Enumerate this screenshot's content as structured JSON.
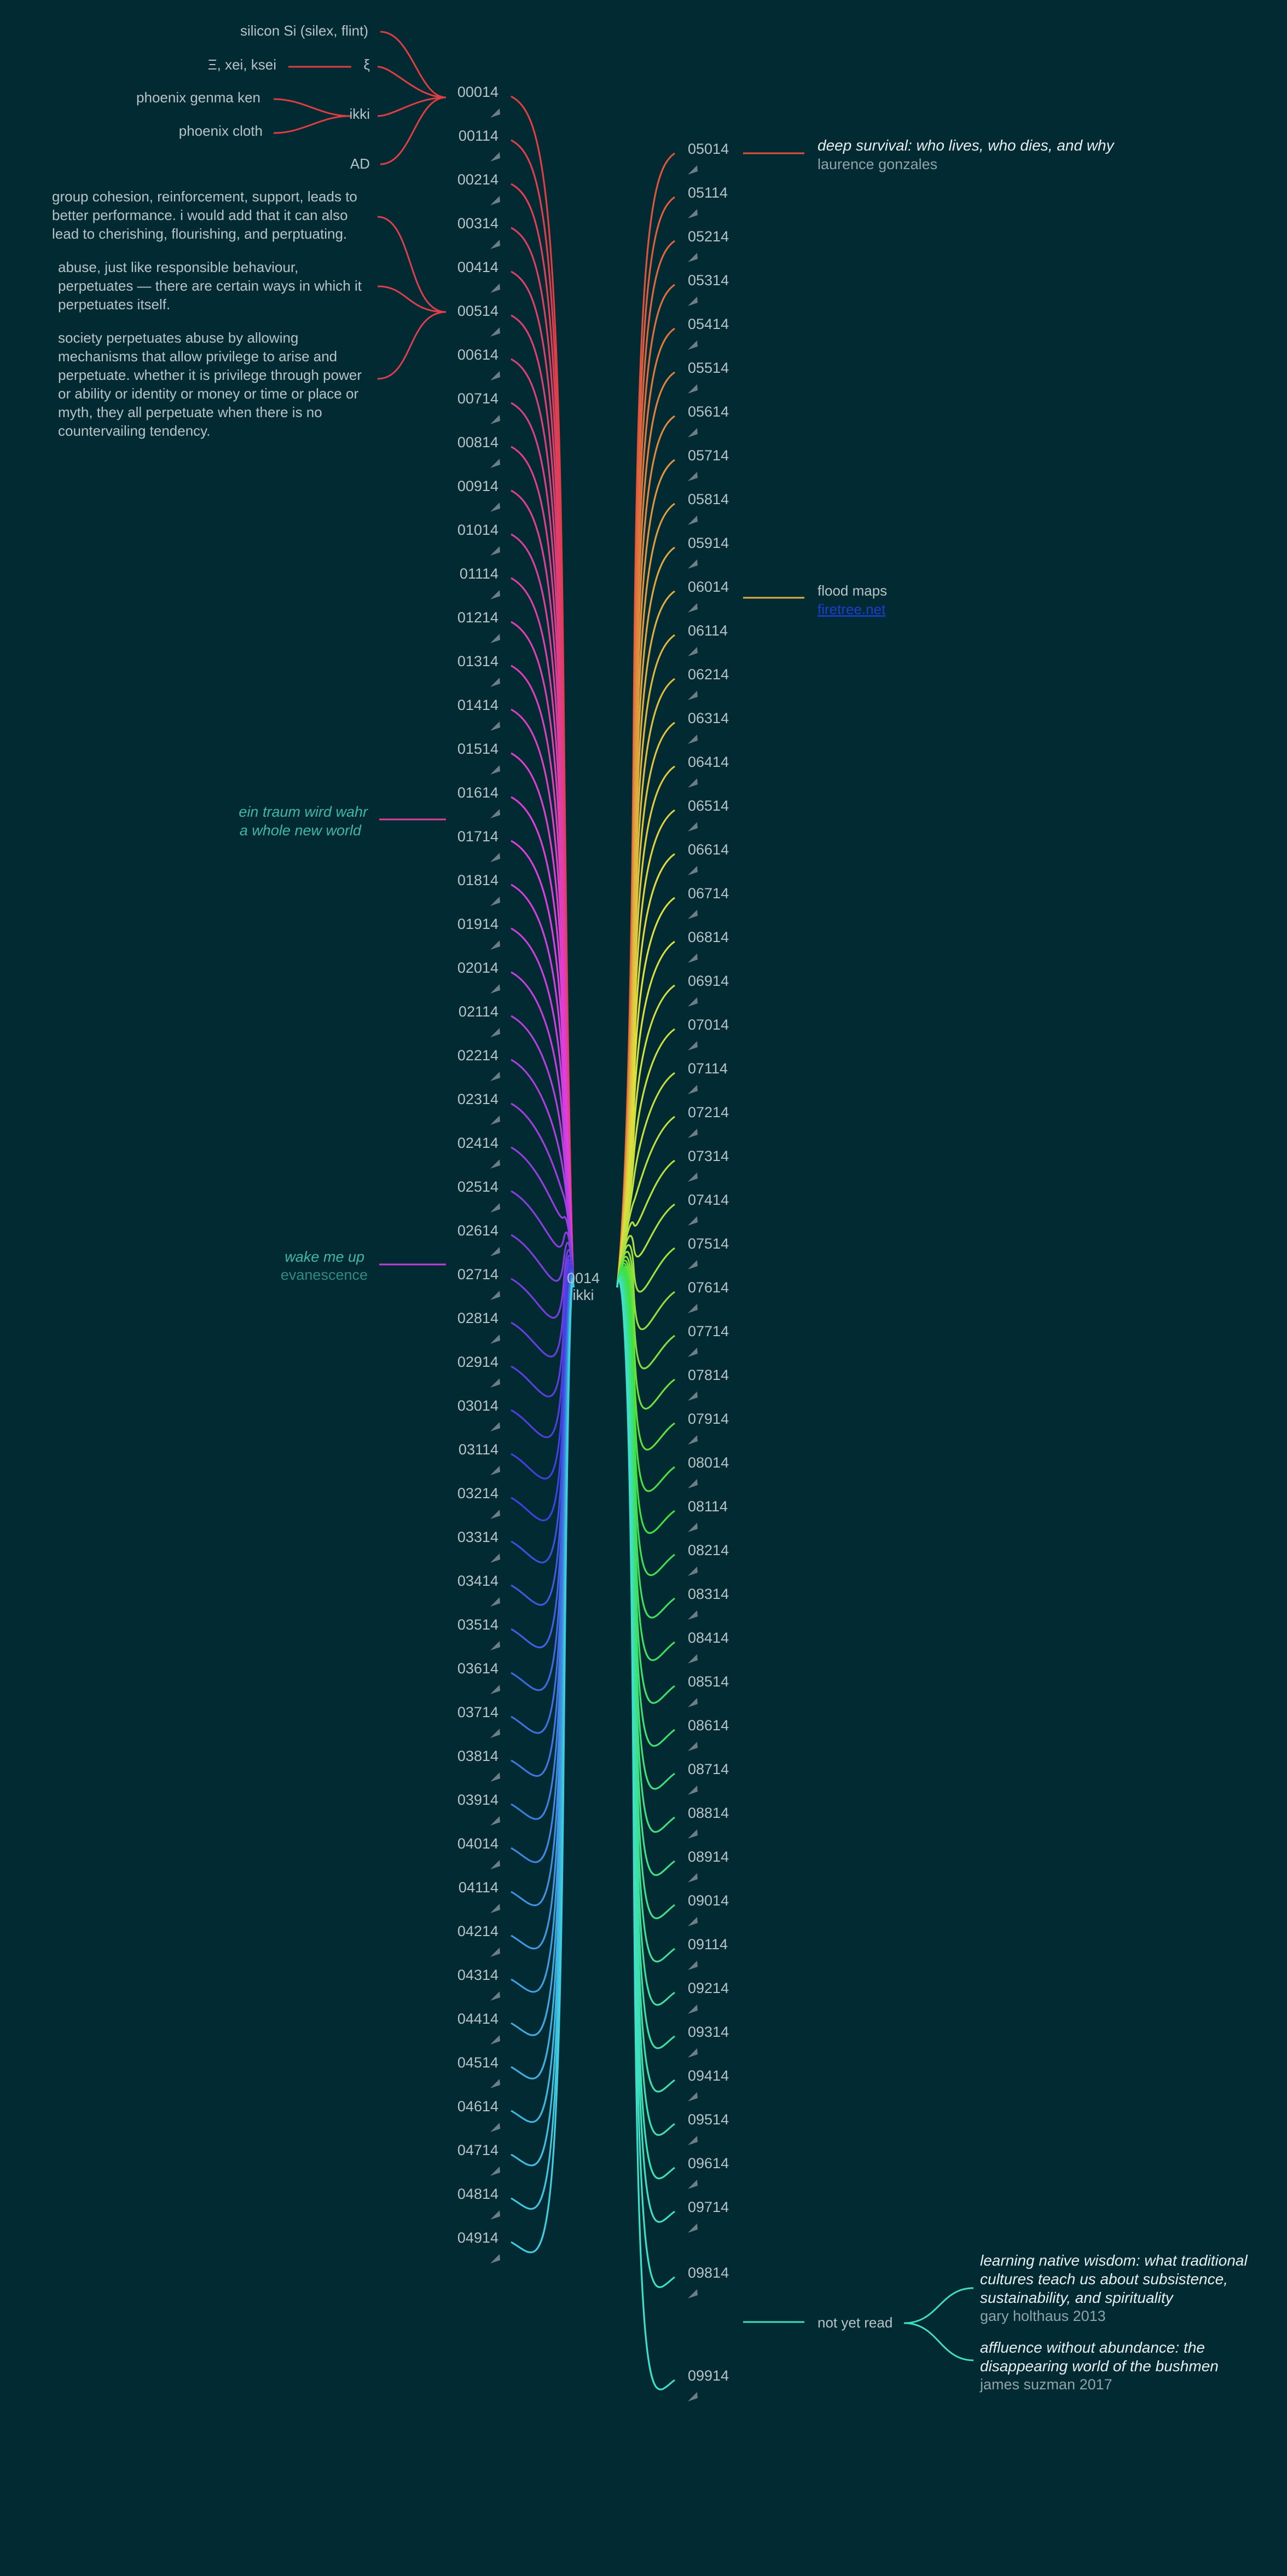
{
  "center": {
    "code": "0014",
    "label": "ikki"
  },
  "left_nodes": [
    "00014",
    "00114",
    "00214",
    "00314",
    "00414",
    "00514",
    "00614",
    "00714",
    "00814",
    "00914",
    "01014",
    "01114",
    "01214",
    "01314",
    "01414",
    "01514",
    "01614",
    "01714",
    "01814",
    "01914",
    "02014",
    "02114",
    "02214",
    "02314",
    "02414",
    "02514",
    "02614",
    "02714",
    "02814",
    "02914",
    "03014",
    "03114",
    "03214",
    "03314",
    "03414",
    "03514",
    "03614",
    "03714",
    "03814",
    "03914",
    "04014",
    "04114",
    "04214",
    "04314",
    "04414",
    "04514",
    "04614",
    "04714",
    "04814",
    "04914"
  ],
  "right_nodes": [
    "05014",
    "05114",
    "05214",
    "05314",
    "05414",
    "05514",
    "05614",
    "05714",
    "05814",
    "05914",
    "06014",
    "06114",
    "06214",
    "06314",
    "06414",
    "06514",
    "06614",
    "06714",
    "06814",
    "06914",
    "07014",
    "07114",
    "07214",
    "07314",
    "07414",
    "07514",
    "07614",
    "07714",
    "07814",
    "07914",
    "08014",
    "08114",
    "08214",
    "08314",
    "08414",
    "08514",
    "08614",
    "08714",
    "08814",
    "08914",
    "09014",
    "09114",
    "09214",
    "09314",
    "09414",
    "09514",
    "09614",
    "09714",
    "09814",
    "09914"
  ],
  "node_00014": {
    "silicon": "silicon Si (silex, flint)",
    "xi_variants": "Ξ, xei, ksei",
    "xi": "ξ",
    "ikki": "ikki",
    "phoenix_genma": "phoenix genma ken",
    "phoenix_cloth": "phoenix cloth",
    "ad": "AD"
  },
  "node_00114": {
    "note1": [
      "group cohesion, reinforcement, support, leads to",
      "better performance. i would add that it can also",
      "lead to cherishing, flourishing, and perptuating."
    ],
    "note2": [
      "abuse, just like responsible behaviour,",
      "perpetuates — there are certain ways in which it",
      "perpetuates itself."
    ],
    "note3": [
      "society perpetuates abuse by allowing",
      "mechanisms that allow privilege to arise and",
      "perpetuate. whether it is privilege through power",
      "or ability or identity or money or time or place or",
      "myth, they all perpetuate when there is no",
      "countervailing tendency."
    ]
  },
  "node_01014": {
    "line1": "ein traum wird wahr",
    "line2": "a whole new world"
  },
  "node_02014": {
    "title": "wake me up",
    "artist": "evanescence"
  },
  "node_05014": {
    "title": "deep survival: who lives, who dies, and why",
    "author": "laurence gonzales"
  },
  "node_06014": {
    "label": "flood maps",
    "link": "firetree.net"
  },
  "node_09814": {
    "status": "not yet read",
    "book1": {
      "title": [
        "learning native wisdom: what traditional",
        "cultures teach us about subsistence,",
        "sustainability, and spirituality"
      ],
      "author": "gary holthaus 2013"
    },
    "book2": {
      "title": [
        "affluence without abundance: the",
        "disappearing world of the bushmen"
      ],
      "author": "james suzman 2017"
    }
  },
  "colors": {
    "background": "#022a33",
    "text": "#b7c3c7",
    "link": "#1a3fd0",
    "title": "#e6eef0",
    "teal_label": "#3fb8a8"
  }
}
